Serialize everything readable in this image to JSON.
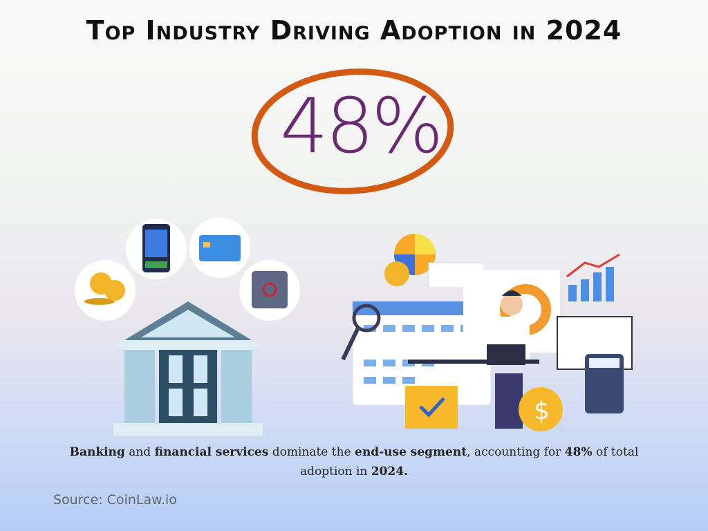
{
  "title": "Top Industry Driving Adoption in 2024",
  "highlight": {
    "value": "48%",
    "ring_color": "#d35a10",
    "text_color": "#6a2a72"
  },
  "caption": {
    "parts": [
      "Banking",
      " and ",
      "financial services",
      " dominate the ",
      "end-use segment",
      ", accounting for ",
      "48%",
      " of total adoption in ",
      "2024."
    ]
  },
  "source": "Source: CoinLaw.io",
  "icons": [
    "coins-icon",
    "pos-terminal-icon",
    "credit-card-icon",
    "safe-icon",
    "bank-building-icon",
    "finance-worker-illustration"
  ]
}
